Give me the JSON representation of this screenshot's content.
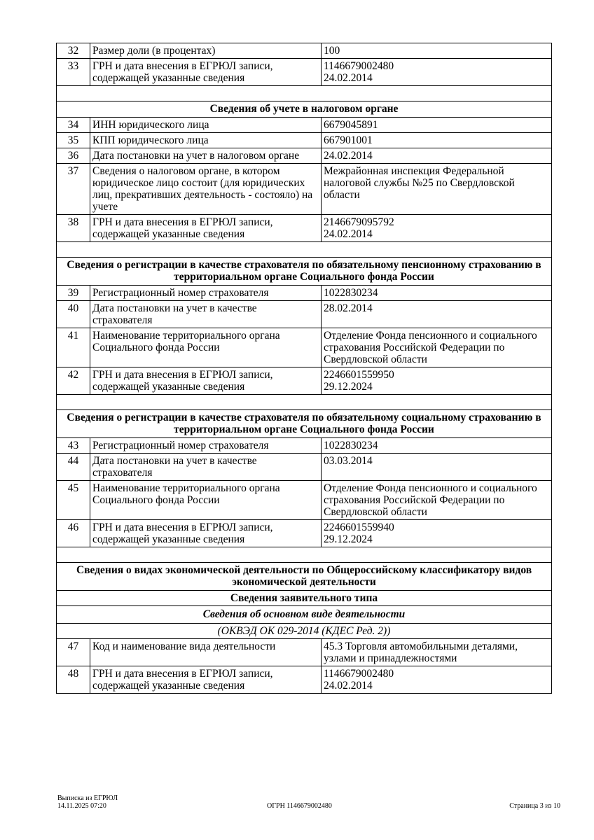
{
  "rows": [
    {
      "type": "item",
      "num": "32",
      "label": "Размер доли (в процентах)",
      "value": [
        "100"
      ]
    },
    {
      "type": "item",
      "num": "33",
      "label": "ГРН и дата внесения в ЕГРЮЛ записи, содержащей указанные сведения",
      "value": [
        "1146679002480",
        "24.02.2014"
      ]
    },
    {
      "type": "blank"
    },
    {
      "type": "head",
      "text": "Сведения об учете в налоговом органе"
    },
    {
      "type": "item",
      "num": "34",
      "label": "ИНН юридического лица",
      "value": [
        "6679045891"
      ]
    },
    {
      "type": "item",
      "num": "35",
      "label": "КПП юридического лица",
      "value": [
        "667901001"
      ]
    },
    {
      "type": "item",
      "num": "36",
      "label": "Дата постановки на учет в налоговом органе",
      "value": [
        "24.02.2014"
      ]
    },
    {
      "type": "item",
      "num": "37",
      "label": "Сведения о налоговом органе, в котором юридическое лицо состоит (для юридических лиц, прекративших деятельность - состояло) на учете",
      "value": [
        "Межрайонная инспекция Федеральной налоговой службы №25 по Свердловской области"
      ]
    },
    {
      "type": "item",
      "num": "38",
      "label": "ГРН и дата внесения в ЕГРЮЛ записи, содержащей указанные сведения",
      "value": [
        "2146679095792",
        "24.02.2014"
      ]
    },
    {
      "type": "blank"
    },
    {
      "type": "head",
      "text": "Сведения о регистрации в качестве страхователя по обязательному пенсионному страхованию в территориальном органе Социального фонда России"
    },
    {
      "type": "item",
      "num": "39",
      "label": "Регистрационный номер страхователя",
      "value": [
        "1022830234"
      ]
    },
    {
      "type": "item",
      "num": "40",
      "label": "Дата постановки на учет в качестве страхователя",
      "value": [
        "28.02.2014"
      ]
    },
    {
      "type": "item",
      "num": "41",
      "label": "Наименование территориального органа Социального фонда России",
      "value": [
        "Отделение Фонда пенсионного и социального страхования Российской Федерации по Свердловской области"
      ]
    },
    {
      "type": "item",
      "num": "42",
      "label": "ГРН и дата внесения в ЕГРЮЛ записи, содержащей указанные сведения",
      "value": [
        "2246601559950",
        "29.12.2024"
      ]
    },
    {
      "type": "blank"
    },
    {
      "type": "head",
      "text": "Сведения о регистрации в качестве страхователя по обязательному социальному страхованию в территориальном органе Социального фонда России"
    },
    {
      "type": "item",
      "num": "43",
      "label": "Регистрационный номер страхователя",
      "value": [
        "1022830234"
      ]
    },
    {
      "type": "item",
      "num": "44",
      "label": "Дата постановки на учет в качестве страхователя",
      "value": [
        "03.03.2014"
      ]
    },
    {
      "type": "item",
      "num": "45",
      "label": "Наименование территориального органа Социального фонда России",
      "value": [
        "Отделение Фонда пенсионного и социального страхования Российской Федерации по Свердловской области"
      ]
    },
    {
      "type": "item",
      "num": "46",
      "label": "ГРН и дата внесения в ЕГРЮЛ записи, содержащей указанные сведения",
      "value": [
        "2246601559940",
        "29.12.2024"
      ]
    },
    {
      "type": "blank"
    },
    {
      "type": "head",
      "text": "Сведения о видах экономической деятельности по Общероссийскому классификатору видов экономической деятельности"
    },
    {
      "type": "sub",
      "text": "Сведения заявительного типа"
    },
    {
      "type": "subi",
      "text": "Сведения об основном виде деятельности"
    },
    {
      "type": "it",
      "text": "(ОКВЭД ОК 029-2014 (КДЕС Ред. 2))"
    },
    {
      "type": "item",
      "num": "47",
      "label": "Код и наименование вида деятельности",
      "value": [
        "45.3 Торговля автомобильными деталями, узлами и принадлежностями"
      ]
    },
    {
      "type": "item",
      "num": "48",
      "label": "ГРН и дата внесения в ЕГРЮЛ записи, содержащей указанные сведения",
      "value": [
        "1146679002480",
        "24.02.2014"
      ]
    }
  ],
  "footer": {
    "doc_title": "Выписка из ЕГРЮЛ",
    "datetime": "14.11.2025 07:20",
    "ogrn": "ОГРН 1146679002480",
    "page": "Страница 3 из 10"
  }
}
